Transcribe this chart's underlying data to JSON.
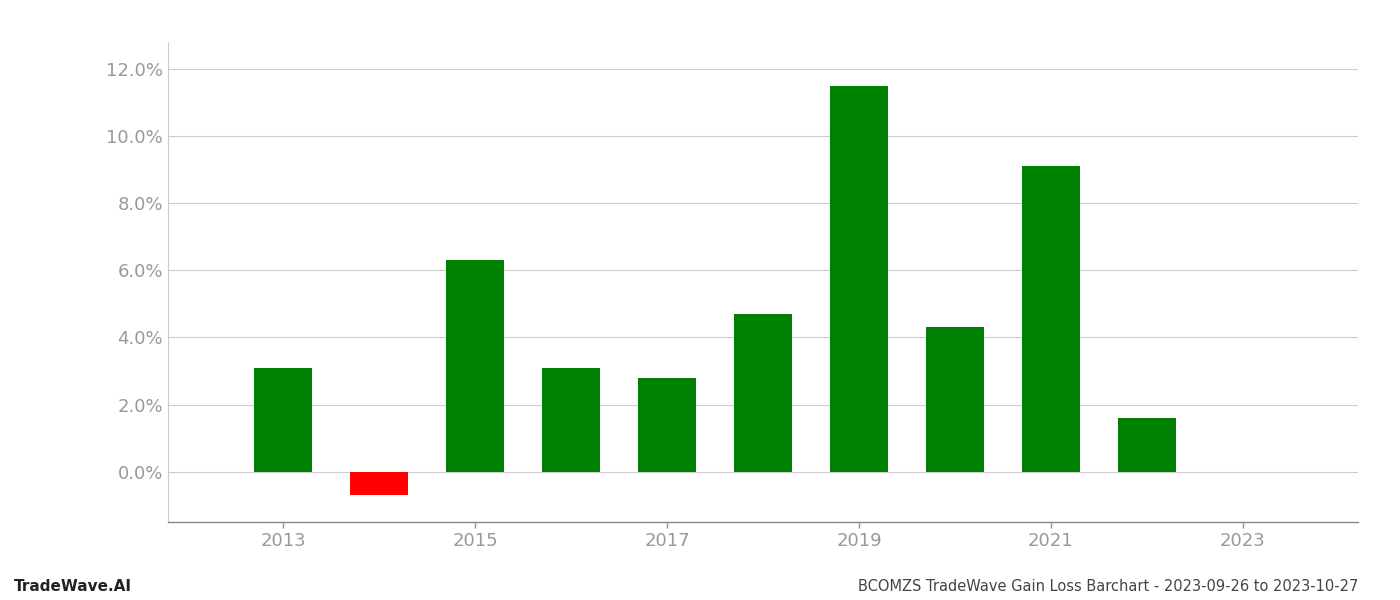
{
  "years": [
    2013,
    2014,
    2015,
    2016,
    2017,
    2018,
    2019,
    2020,
    2021,
    2022
  ],
  "values": [
    0.031,
    -0.007,
    0.063,
    0.031,
    0.028,
    0.047,
    0.115,
    0.043,
    0.091,
    0.016
  ],
  "colors": [
    "#008000",
    "#ff0000",
    "#008000",
    "#008000",
    "#008000",
    "#008000",
    "#008000",
    "#008000",
    "#008000",
    "#008000"
  ],
  "ylim": [
    -0.015,
    0.128
  ],
  "yticks": [
    0.0,
    0.02,
    0.04,
    0.06,
    0.08,
    0.1,
    0.12
  ],
  "xticks": [
    2013,
    2015,
    2017,
    2019,
    2021,
    2023
  ],
  "xlim": [
    2011.8,
    2024.2
  ],
  "title": "BCOMZS TradeWave Gain Loss Barchart - 2023-09-26 to 2023-10-27",
  "watermark": "TradeWave.AI",
  "bar_width": 0.6,
  "background_color": "#ffffff",
  "grid_color": "#cccccc",
  "axis_label_color": "#999999",
  "title_color": "#444444",
  "watermark_color": "#222222",
  "title_fontsize": 10.5,
  "watermark_fontsize": 11,
  "tick_label_fontsize": 13
}
